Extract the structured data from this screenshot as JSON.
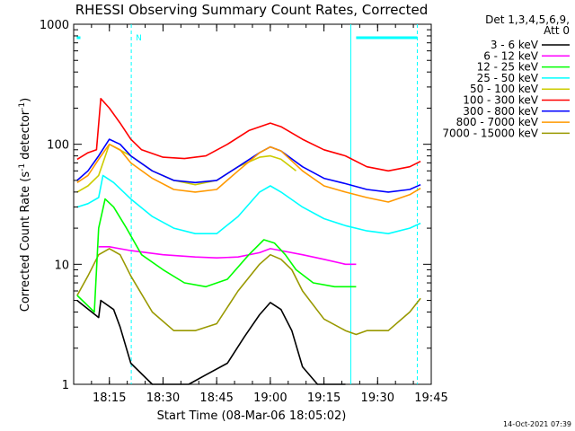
{
  "chart_data": {
    "type": "line",
    "title": "RHESSI Observing Summary Count Rates, Corrected",
    "xlabel": "Start Time (08-Mar-06 18:05:02)",
    "ylabel": "Corrected Count Rate (s⁻¹ detector⁻¹)",
    "ylabel_parts": [
      "Corrected Count Rate (s",
      "-1",
      " detector",
      "-1",
      ")"
    ],
    "yscale": "log",
    "ylim": [
      1,
      1000
    ],
    "xlim": [
      18.0836,
      19.75
    ],
    "x_ticks": [
      {
        "value": 18.25,
        "label": "18:15"
      },
      {
        "value": 18.5,
        "label": "18:30"
      },
      {
        "value": 18.75,
        "label": "18:45"
      },
      {
        "value": 19.0,
        "label": "19:00"
      },
      {
        "value": 19.25,
        "label": "19:15"
      },
      {
        "value": 19.5,
        "label": "19:30"
      },
      {
        "value": 19.75,
        "label": "19:45"
      }
    ],
    "y_ticks": [
      {
        "value": 1,
        "label": "1"
      },
      {
        "value": 10,
        "label": "10"
      },
      {
        "value": 100,
        "label": "100"
      },
      {
        "value": 1000,
        "label": "1000"
      }
    ],
    "legend_header": [
      "Det 1,3,4,5,6,9,",
      "Att 0"
    ],
    "legend_placement": "right",
    "night_times": [
      18.115,
      18.352
    ],
    "day_times": [
      18.098,
      19.375,
      19.4,
      19.685
    ],
    "series": [
      {
        "name": "3 - 6 keV",
        "color": "#000000",
        "x": [
          18.1,
          18.2,
          18.21,
          18.27,
          18.3,
          18.35,
          18.45,
          18.55,
          18.62,
          18.7,
          18.8,
          18.88,
          18.95,
          19.0,
          19.05,
          19.1,
          19.15,
          19.22,
          19.28,
          19.35
        ],
        "y": [
          5.0,
          3.6,
          5.0,
          4.2,
          3.0,
          1.5,
          1.0,
          1.0,
          1.0,
          1.2,
          1.5,
          2.5,
          3.8,
          4.8,
          4.2,
          2.8,
          1.4,
          1.0,
          1.0,
          1.0
        ]
      },
      {
        "name": "6 - 12 keV",
        "color": "#ff00ff",
        "x": [
          18.2,
          18.25,
          18.35,
          18.5,
          18.65,
          18.75,
          18.85,
          18.95,
          19.0,
          19.05,
          19.15,
          19.25,
          19.35,
          19.4
        ],
        "y": [
          14.0,
          14.0,
          13.0,
          12.0,
          11.5,
          11.3,
          11.5,
          12.5,
          13.5,
          13.0,
          12.0,
          11.0,
          10.0,
          10.0
        ]
      },
      {
        "name": "12 - 25 keV",
        "color": "#00ff00",
        "x": [
          18.1,
          18.18,
          18.2,
          18.23,
          18.27,
          18.33,
          18.4,
          18.5,
          18.6,
          18.7,
          18.8,
          18.9,
          18.97,
          19.02,
          19.07,
          19.12,
          19.2,
          19.3,
          19.4
        ],
        "y": [
          5.5,
          4.0,
          20.0,
          35.0,
          30.0,
          20.0,
          12.0,
          9.0,
          7.0,
          6.5,
          7.5,
          12.0,
          16.0,
          15.0,
          12.0,
          9.0,
          7.0,
          6.5,
          6.5
        ]
      },
      {
        "name": "25 - 50 keV",
        "color": "#00ffff",
        "x": [
          18.1,
          18.15,
          18.2,
          18.22,
          18.27,
          18.35,
          18.45,
          18.55,
          18.65,
          18.75,
          18.85,
          18.95,
          19.0,
          19.05,
          19.15,
          19.25,
          19.35,
          19.45,
          19.55,
          19.65,
          19.7
        ],
        "y": [
          30.0,
          32.0,
          36.0,
          55.0,
          48.0,
          35.0,
          25.0,
          20.0,
          18.0,
          18.0,
          25.0,
          40.0,
          45.0,
          40.0,
          30.0,
          24.0,
          21.0,
          19.0,
          18.0,
          20.0,
          22.0
        ]
      },
      {
        "name": "50 - 100 keV",
        "color": "#cccc00",
        "x": [
          18.1,
          18.15,
          18.2,
          18.25,
          18.35,
          18.45,
          18.55,
          18.65,
          18.75,
          18.85,
          18.95,
          19.0,
          19.05,
          19.12
        ],
        "y": [
          40.0,
          45.0,
          55.0,
          100.0,
          80.0,
          60.0,
          50.0,
          46.0,
          50.0,
          65.0,
          78.0,
          80.0,
          75.0,
          60.0
        ]
      },
      {
        "name": "100 - 300 keV",
        "color": "#ff0000",
        "x": [
          18.1,
          18.15,
          18.19,
          18.21,
          18.25,
          18.3,
          18.35,
          18.4,
          18.5,
          18.6,
          18.7,
          18.8,
          18.9,
          19.0,
          19.05,
          19.15,
          19.25,
          19.35,
          19.45,
          19.55,
          19.65,
          19.7
        ],
        "y": [
          75.0,
          85.0,
          90.0,
          240.0,
          200.0,
          150.0,
          110.0,
          90.0,
          78.0,
          76.0,
          80.0,
          100.0,
          130.0,
          150.0,
          140.0,
          110.0,
          90.0,
          80.0,
          65.0,
          60.0,
          65.0,
          72.0
        ]
      },
      {
        "name": "300 - 800 keV",
        "color": "#0000ff",
        "x": [
          18.1,
          18.15,
          18.2,
          18.25,
          18.3,
          18.35,
          18.45,
          18.55,
          18.65,
          18.75,
          18.85,
          18.95,
          19.0,
          19.05,
          19.15,
          19.25,
          19.35,
          19.45,
          19.55,
          19.65,
          19.7
        ],
        "y": [
          50.0,
          60.0,
          80.0,
          110.0,
          100.0,
          80.0,
          60.0,
          50.0,
          48.0,
          50.0,
          65.0,
          85.0,
          95.0,
          88.0,
          65.0,
          52.0,
          47.0,
          42.0,
          40.0,
          42.0,
          46.0
        ]
      },
      {
        "name": "800 - 7000 keV",
        "color": "#ff9900",
        "x": [
          18.1,
          18.15,
          18.2,
          18.25,
          18.3,
          18.35,
          18.45,
          18.55,
          18.65,
          18.75,
          18.85,
          18.95,
          19.0,
          19.05,
          19.15,
          19.25,
          19.35,
          19.45,
          19.55,
          19.65,
          19.7
        ],
        "y": [
          48.0,
          55.0,
          75.0,
          100.0,
          90.0,
          70.0,
          52.0,
          42.0,
          40.0,
          42.0,
          60.0,
          85.0,
          95.0,
          88.0,
          60.0,
          45.0,
          40.0,
          36.0,
          33.0,
          38.0,
          43.0
        ]
      },
      {
        "name": "7000 - 15000 keV",
        "color": "#999900",
        "x": [
          18.1,
          18.15,
          18.2,
          18.25,
          18.3,
          18.35,
          18.45,
          18.55,
          18.65,
          18.75,
          18.85,
          18.95,
          19.0,
          19.05,
          19.1,
          19.15,
          19.25,
          19.35,
          19.4,
          19.45,
          19.55,
          19.65,
          19.7
        ],
        "y": [
          5.5,
          8.0,
          12.0,
          13.5,
          12.0,
          8.0,
          4.0,
          2.8,
          2.8,
          3.2,
          6.0,
          10.0,
          12.0,
          11.0,
          9.0,
          6.0,
          3.5,
          2.8,
          2.6,
          2.8,
          2.8,
          4.0,
          5.2
        ]
      }
    ],
    "footer": "14-Oct-2021 07:39"
  }
}
